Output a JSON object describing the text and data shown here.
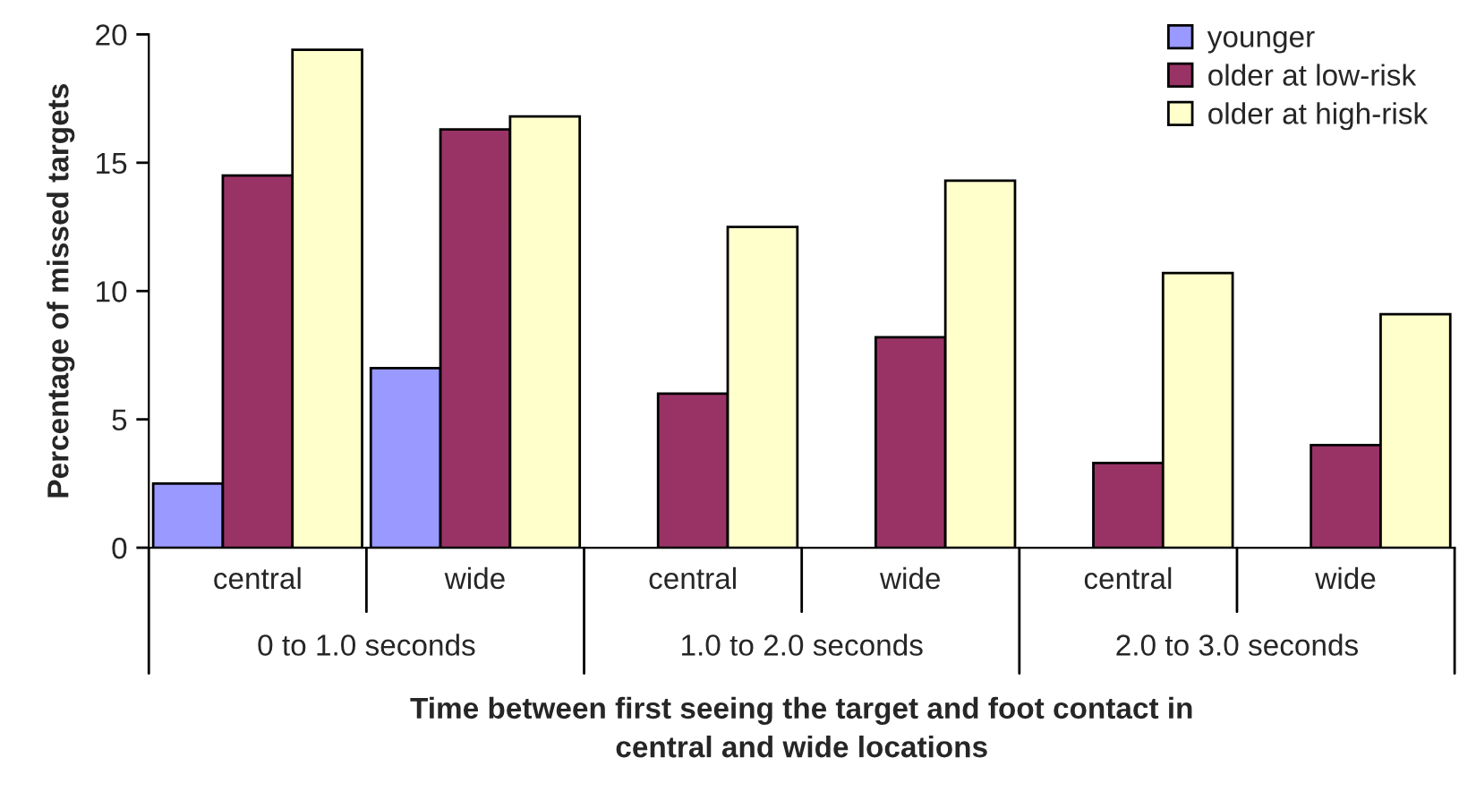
{
  "chart_data": {
    "type": "bar",
    "categories": [
      "central",
      "wide",
      "central",
      "wide",
      "central",
      "wide"
    ],
    "series": [
      {
        "name": "younger",
        "color": "#9999ff",
        "values": [
          2.5,
          7.0,
          null,
          null,
          null,
          null
        ]
      },
      {
        "name": "older at low-risk",
        "color": "#993366",
        "values": [
          14.5,
          16.3,
          6.0,
          8.2,
          3.3,
          4.0
        ]
      },
      {
        "name": "older at high-risk",
        "color": "#ffffcc",
        "values": [
          19.4,
          16.8,
          12.5,
          14.3,
          10.7,
          9.1
        ]
      }
    ],
    "ylabel": "Percentage of missed targets",
    "xlabel": "Time between first seeing the target and foot contact in\ncentral and wide locations",
    "annotations": [
      "0 to 1.0 seconds",
      "1.0 to 2.0 seconds",
      "2.0 to 3.0 seconds"
    ],
    "ylim": [
      0,
      20
    ],
    "yticks": [
      0,
      5,
      10,
      15,
      20
    ],
    "grid": false,
    "legend": "top right"
  }
}
